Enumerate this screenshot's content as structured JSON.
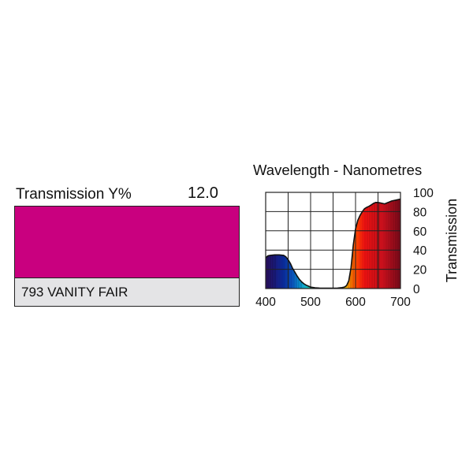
{
  "swatch": {
    "transmission_label": "Transmission Y%",
    "transmission_value": "12.0",
    "color": "#c9007f",
    "name": "793 VANITY FAIR",
    "name_bg": "#e4e4e6"
  },
  "chart_data": {
    "type": "area",
    "title": "Wavelength - Nanometres",
    "xlabel": "",
    "ylabel": "Transmission",
    "xlim": [
      400,
      700
    ],
    "ylim": [
      0,
      100
    ],
    "x_ticks": [
      "400",
      "500",
      "600",
      "700"
    ],
    "y_ticks": [
      "0",
      "20",
      "40",
      "60",
      "80",
      "100"
    ],
    "grid": true,
    "fill": "spectral colors",
    "series": [
      {
        "x": [
          400,
          405,
          410,
          420,
          430,
          440,
          445,
          450,
          455,
          460,
          465,
          470,
          475,
          480,
          485,
          490,
          495,
          500,
          510,
          520,
          530,
          540,
          550,
          560,
          570,
          575,
          580,
          585,
          590,
          595,
          600,
          605,
          610,
          615,
          620,
          625,
          630,
          635,
          640,
          645,
          650,
          655,
          660,
          665,
          670,
          675,
          680,
          685,
          690,
          695,
          700
        ],
        "values": [
          32,
          34,
          34.5,
          35,
          35,
          34.5,
          33,
          30,
          26,
          21,
          17,
          13,
          9.5,
          7,
          5,
          3.5,
          2.5,
          1.5,
          0.8,
          0.5,
          0.3,
          0.3,
          0.3,
          0.5,
          1,
          1.5,
          3,
          8,
          22,
          45,
          62,
          71,
          76,
          80,
          83,
          84.5,
          85.5,
          87,
          88.5,
          89.5,
          89.5,
          89,
          88.5,
          88,
          89,
          90,
          91,
          91.5,
          92,
          92.5,
          93
        ]
      }
    ]
  }
}
